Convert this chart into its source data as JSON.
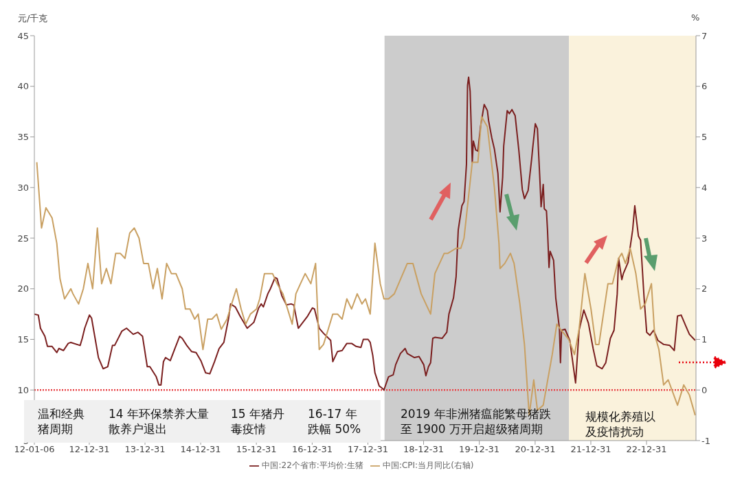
{
  "chart_data": {
    "type": "line",
    "ylabel": "元/千克",
    "y2label": "%",
    "legend": "bottom",
    "marker": "none",
    "grid": false,
    "xlim": [
      "2012-01-06",
      "2023-11-20"
    ],
    "xticks": [
      {
        "value": "2012-01-06",
        "label": "12-01-06"
      },
      {
        "value": "2012-12-31",
        "label": "12-12-31"
      },
      {
        "value": "2013-12-31",
        "label": "13-12-31"
      },
      {
        "value": "2014-12-31",
        "label": "14-12-31"
      },
      {
        "value": "2015-12-31",
        "label": "15-12-31"
      },
      {
        "value": "2016-12-31",
        "label": "16-12-31"
      },
      {
        "value": "2017-12-31",
        "label": "17-12-31"
      },
      {
        "value": "2018-12-31",
        "label": "18-12-31"
      },
      {
        "value": "2019-12-31",
        "label": "19-12-31"
      },
      {
        "value": "2020-12-31",
        "label": "20-12-31"
      },
      {
        "value": "2021-12-31",
        "label": "21-12-31"
      },
      {
        "value": "2022-12-31",
        "label": "22-12-31"
      }
    ],
    "ylim": [
      5,
      45
    ],
    "yticks": [
      5,
      10,
      15,
      20,
      25,
      30,
      35,
      40,
      45
    ],
    "y2lim": [
      -1,
      7
    ],
    "y2ticks": [
      -1,
      0,
      1,
      2,
      3,
      4,
      5,
      6,
      7
    ],
    "bands": [
      {
        "axis": "x",
        "from": "2018-04-19",
        "to": "2021-08-10",
        "color": "#cccccc"
      },
      {
        "axis": "x",
        "from": "2021-08-10",
        "to": "2023-11-20",
        "color": "#faf2dc"
      }
    ],
    "ref_lines": [
      {
        "axis": "y",
        "value": 10,
        "color": "#e8474b",
        "line_style": "dotted"
      }
    ],
    "annotations": [
      "温和经典猪周期",
      "14 年环保禁养大量散养户退出",
      "15 年猪丹毒疫情",
      "16-17 年跌幅 50%",
      "2019 年非洲猪瘟能繁母猪跌至 1900 万开启超级猪周期",
      "规模化养殖以及疫情扰动"
    ],
    "series": [
      {
        "name": "中国:22个省市:平均价:生猪",
        "color": "#7a1e1e",
        "x": [
          "2012-01-06",
          "2012-02-01",
          "2012-02-15",
          "2012-03-15",
          "2012-04-01",
          "2012-05-01",
          "2012-06-01",
          "2012-06-15",
          "2012-07-15",
          "2012-08-15",
          "2012-09-01",
          "2012-11-01",
          "2012-11-15",
          "2012-12-01",
          "2013-01-01",
          "2013-01-15",
          "2013-03-01",
          "2013-04-01",
          "2013-05-01",
          "2013-06-01",
          "2013-06-15",
          "2013-08-01",
          "2013-09-01",
          "2013-10-15",
          "2013-11-15",
          "2013-12-15",
          "2014-01-15",
          "2014-02-01",
          "2014-03-15",
          "2014-04-01",
          "2014-04-15",
          "2014-05-01",
          "2014-05-15",
          "2014-06-15",
          "2014-07-15",
          "2014-08-15",
          "2014-09-01",
          "2014-10-01",
          "2014-11-01",
          "2014-12-01",
          "2015-01-01",
          "2015-02-01",
          "2015-03-01",
          "2015-04-01",
          "2015-05-01",
          "2015-06-01",
          "2015-07-01",
          "2015-07-15",
          "2015-08-15",
          "2015-09-15",
          "2015-11-01",
          "2015-12-01",
          "2015-12-15",
          "2016-01-15",
          "2016-02-01",
          "2016-02-15",
          "2016-03-15",
          "2016-04-01",
          "2016-05-01",
          "2016-05-15",
          "2016-06-15",
          "2016-07-15",
          "2016-08-15",
          "2016-09-01",
          "2016-10-01",
          "2016-11-01",
          "2016-12-01",
          "2017-01-01",
          "2017-01-15",
          "2017-02-15",
          "2017-03-15",
          "2017-05-01",
          "2017-05-15",
          "2017-06-15",
          "2017-07-15",
          "2017-08-15",
          "2017-09-15",
          "2017-10-15",
          "2017-11-15",
          "2017-12-01",
          "2018-01-01",
          "2018-01-15",
          "2018-02-01",
          "2018-02-15",
          "2018-03-15",
          "2018-04-01",
          "2018-04-15",
          "2018-05-15",
          "2018-06-15",
          "2018-07-01",
          "2018-08-01",
          "2018-09-01",
          "2018-09-15",
          "2018-11-01",
          "2018-12-01",
          "2019-01-01",
          "2019-01-15",
          "2019-02-01",
          "2019-02-15",
          "2019-03-01",
          "2019-03-15",
          "2019-05-01",
          "2019-06-01",
          "2019-06-15",
          "2019-07-15",
          "2019-08-01",
          "2019-08-15",
          "2019-09-08",
          "2019-09-22",
          "2019-10-08",
          "2019-10-15",
          "2019-10-22",
          "2019-11-01",
          "2019-11-15",
          "2019-11-22",
          "2019-12-08",
          "2019-12-22",
          "2020-01-08",
          "2020-02-01",
          "2020-02-22",
          "2020-03-01",
          "2020-03-22",
          "2020-04-08",
          "2020-05-01",
          "2020-05-15",
          "2020-06-01",
          "2020-06-08",
          "2020-07-01",
          "2020-07-15",
          "2020-08-01",
          "2020-08-22",
          "2020-09-15",
          "2020-10-08",
          "2020-10-22",
          "2020-11-15",
          "2020-12-08",
          "2020-12-15",
          "2021-01-01",
          "2021-01-15",
          "2021-02-01",
          "2021-02-08",
          "2021-02-22",
          "2021-03-01",
          "2021-03-15",
          "2021-03-22",
          "2021-04-01",
          "2021-04-08",
          "2021-05-01",
          "2021-05-15",
          "2021-06-08",
          "2021-06-15",
          "2021-06-22",
          "2021-07-15",
          "2021-08-15",
          "2021-09-22",
          "2021-10-15",
          "2021-11-15",
          "2021-12-15",
          "2022-01-15",
          "2022-02-08",
          "2022-03-15",
          "2022-04-08",
          "2022-05-08",
          "2022-06-01",
          "2022-06-22",
          "2022-07-01",
          "2022-07-22",
          "2022-08-01",
          "2022-09-01",
          "2022-09-08",
          "2022-10-01",
          "2022-10-15",
          "2022-11-08",
          "2022-11-22",
          "2022-12-15",
          "2023-01-01",
          "2023-01-22",
          "2023-02-15",
          "2023-03-15",
          "2023-04-22",
          "2023-06-01",
          "2023-07-01",
          "2023-07-22",
          "2023-08-15",
          "2023-09-15",
          "2023-10-08",
          "2023-11-15"
        ],
        "values": [
          17.5,
          17.4,
          16.1,
          15.3,
          14.3,
          14.3,
          13.7,
          14.1,
          13.9,
          14.6,
          14.7,
          14.4,
          15.1,
          16.1,
          17.4,
          17.1,
          13.2,
          12.1,
          12.3,
          14.4,
          14.4,
          15.8,
          16.1,
          15.5,
          15.7,
          15.3,
          12.3,
          12.3,
          11.3,
          10.5,
          10.5,
          12.8,
          13.2,
          12.9,
          14.1,
          15.3,
          15.1,
          14.4,
          13.8,
          13.7,
          12.9,
          11.7,
          11.6,
          12.8,
          14.1,
          14.7,
          17.0,
          18.5,
          18.2,
          17.3,
          16.1,
          16.5,
          16.7,
          18.1,
          18.5,
          18.2,
          19.5,
          20.0,
          21.1,
          21.0,
          19.3,
          18.4,
          18.5,
          18.4,
          16.1,
          16.7,
          17.3,
          18.1,
          18.0,
          16.1,
          15.6,
          14.9,
          12.8,
          13.8,
          13.9,
          14.6,
          14.6,
          14.3,
          14.2,
          15.0,
          15.0,
          14.7,
          13.4,
          11.7,
          10.4,
          10.2,
          10.0,
          11.3,
          11.5,
          12.5,
          13.6,
          14.1,
          13.6,
          13.2,
          13.3,
          12.5,
          11.4,
          12.3,
          12.7,
          15.1,
          15.2,
          15.1,
          15.7,
          17.5,
          19.1,
          21.2,
          25.8,
          28.2,
          28.6,
          32.3,
          40.1,
          40.9,
          39.5,
          32.5,
          34.6,
          33.7,
          33.6,
          36.0,
          38.2,
          37.6,
          36.6,
          34.9,
          33.8,
          31.4,
          27.6,
          31.0,
          34.1,
          37.6,
          37.3,
          37.7,
          37.1,
          33.7,
          29.8,
          28.9,
          29.7,
          32.8,
          33.9,
          36.3,
          35.8,
          30.5,
          28.1,
          30.3,
          27.9,
          27.7,
          25.8,
          22.1,
          23.7,
          22.8,
          19.1,
          16.1,
          12.7,
          15.9,
          16.0,
          14.9,
          10.7,
          15.9,
          17.9,
          16.6,
          14.1,
          12.4,
          12.1,
          12.7,
          15.1,
          15.9,
          19.5,
          23.0,
          20.9,
          21.5,
          22.6,
          23.4,
          25.8,
          28.2,
          25.2,
          24.8,
          19.1,
          15.7,
          15.4,
          15.9,
          14.9,
          14.5,
          14.4,
          13.9,
          17.3,
          17.4,
          16.3,
          15.5,
          14.9
        ]
      },
      {
        "name": "中国:CPI:当月同比(右轴)",
        "color": "#c9a062",
        "axis": "y2",
        "x": [
          "2012-01-22",
          "2012-02-22",
          "2012-03-22",
          "2012-05-01",
          "2012-06-01",
          "2012-06-22",
          "2012-07-22",
          "2012-09-01",
          "2012-09-15",
          "2012-10-22",
          "2012-11-22",
          "2012-12-22",
          "2013-01-22",
          "2013-02-22",
          "2013-03-22",
          "2013-04-22",
          "2013-05-22",
          "2013-06-22",
          "2013-07-22",
          "2013-08-22",
          "2013-09-22",
          "2013-10-22",
          "2013-11-22",
          "2013-12-22",
          "2014-01-22",
          "2014-02-22",
          "2014-03-22",
          "2014-04-22",
          "2014-05-22",
          "2014-06-22",
          "2014-07-22",
          "2014-09-01",
          "2014-09-22",
          "2014-10-22",
          "2014-11-22",
          "2014-12-15",
          "2015-01-15",
          "2015-02-15",
          "2015-03-15",
          "2015-04-15",
          "2015-05-15",
          "2015-06-22",
          "2015-07-22",
          "2015-08-22",
          "2015-09-22",
          "2015-10-22",
          "2015-11-22",
          "2016-01-01",
          "2016-01-22",
          "2016-02-22",
          "2016-03-22",
          "2016-04-15",
          "2016-05-15",
          "2016-06-22",
          "2016-08-22",
          "2016-09-15",
          "2016-10-15",
          "2016-11-15",
          "2016-12-22",
          "2017-01-22",
          "2017-02-15",
          "2017-03-15",
          "2017-04-15",
          "2017-05-15",
          "2017-06-15",
          "2017-07-15",
          "2017-08-15",
          "2017-09-15",
          "2017-10-22",
          "2017-11-22",
          "2017-12-15",
          "2018-01-15",
          "2018-02-15",
          "2018-03-22",
          "2018-04-15",
          "2018-05-15",
          "2018-06-22",
          "2018-09-15",
          "2018-10-22",
          "2018-12-15",
          "2019-02-15",
          "2019-03-15",
          "2019-05-15",
          "2019-06-08",
          "2019-08-01",
          "2019-09-01",
          "2019-09-22",
          "2019-11-15",
          "2019-12-22",
          "2020-01-15",
          "2020-02-22",
          "2020-04-08",
          "2020-05-08",
          "2020-05-15",
          "2020-06-15",
          "2020-07-22",
          "2020-08-15",
          "2020-09-22",
          "2020-10-22",
          "2020-11-22",
          "2020-12-22",
          "2021-01-15",
          "2021-02-22",
          "2021-04-22",
          "2021-05-22",
          "2021-06-15",
          "2021-08-08",
          "2021-09-15",
          "2021-10-15",
          "2021-11-22",
          "2022-01-01",
          "2022-02-01",
          "2022-02-22",
          "2022-04-22",
          "2022-05-22",
          "2022-07-01",
          "2022-07-22",
          "2022-08-15",
          "2022-09-15",
          "2022-10-22",
          "2022-11-22",
          "2022-12-22",
          "2023-02-01",
          "2023-02-22",
          "2023-03-22",
          "2023-04-22",
          "2023-05-22",
          "2023-07-22",
          "2023-09-01",
          "2023-10-08",
          "2023-11-15"
        ],
        "values": [
          4.5,
          3.2,
          3.6,
          3.4,
          2.9,
          2.2,
          1.8,
          2.0,
          1.9,
          1.7,
          2.0,
          2.5,
          2.0,
          3.2,
          2.1,
          2.4,
          2.1,
          2.7,
          2.7,
          2.6,
          3.1,
          3.2,
          3.0,
          2.5,
          2.5,
          2.0,
          2.4,
          1.8,
          2.5,
          2.3,
          2.3,
          2.0,
          1.6,
          1.6,
          1.4,
          1.5,
          0.8,
          1.4,
          1.4,
          1.5,
          1.2,
          1.4,
          1.7,
          2.0,
          1.6,
          1.3,
          1.5,
          1.6,
          1.8,
          2.3,
          2.3,
          2.3,
          2.1,
          1.9,
          1.3,
          1.9,
          2.1,
          2.3,
          2.1,
          2.5,
          0.8,
          0.9,
          1.2,
          1.5,
          1.5,
          1.4,
          1.8,
          1.6,
          1.9,
          1.7,
          1.8,
          1.5,
          2.9,
          2.1,
          1.8,
          1.8,
          1.9,
          2.5,
          2.5,
          1.9,
          1.5,
          2.3,
          2.7,
          2.7,
          2.8,
          2.8,
          3.0,
          4.5,
          4.5,
          5.4,
          5.2,
          4.0,
          2.9,
          2.4,
          2.5,
          2.7,
          2.5,
          1.7,
          0.9,
          -0.5,
          0.2,
          -0.4,
          -0.3,
          0.7,
          1.3,
          1.2,
          1.0,
          0.7,
          1.2,
          2.3,
          1.6,
          0.9,
          0.9,
          2.1,
          2.1,
          2.6,
          2.7,
          2.5,
          2.8,
          2.3,
          1.6,
          1.7,
          2.1,
          1.1,
          0.8,
          0.1,
          0.2,
          -0.3,
          0.1,
          -0.1,
          -0.5
        ]
      }
    ]
  }
}
